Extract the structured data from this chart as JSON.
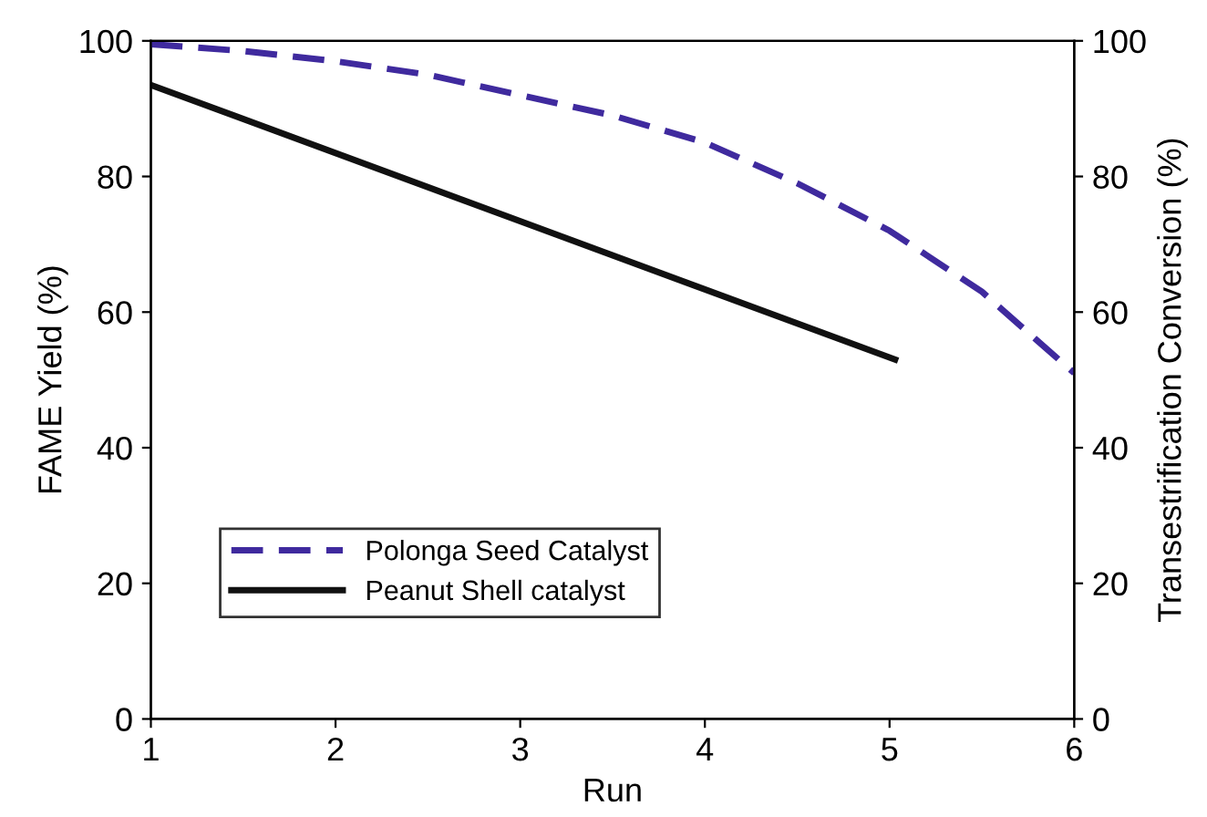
{
  "chart_data": {
    "type": "line",
    "xlabel": "Run",
    "ylabel": "FAME Yield (%)",
    "y2label": "Transestrification Conversion (%)",
    "xlim": [
      1,
      6
    ],
    "xticks": [
      1,
      2,
      3,
      4,
      5,
      6
    ],
    "ylim": [
      0,
      100
    ],
    "yticks": [
      0,
      20,
      40,
      60,
      80,
      100
    ],
    "y2lim": [
      0,
      100
    ],
    "y2ticks": [
      0,
      20,
      40,
      60,
      80,
      100
    ],
    "grid": false,
    "legend": "bottom left",
    "series": [
      {
        "name": "Polonga Seed Catalyst",
        "color": "#3f2a9e",
        "line_style": "dashed",
        "axis": "y2",
        "x": [
          1,
          1.5,
          2,
          2.5,
          3,
          3.5,
          4,
          4.5,
          5,
          5.5,
          6
        ],
        "values": [
          99.5,
          98.5,
          97,
          95,
          92,
          89,
          85,
          79,
          72,
          63,
          51
        ]
      },
      {
        "name": "Peanut Shell catalyst",
        "color": "#111111",
        "line_style": "solid",
        "x": [
          1,
          5.03
        ],
        "values": [
          93.5,
          53
        ]
      }
    ]
  }
}
